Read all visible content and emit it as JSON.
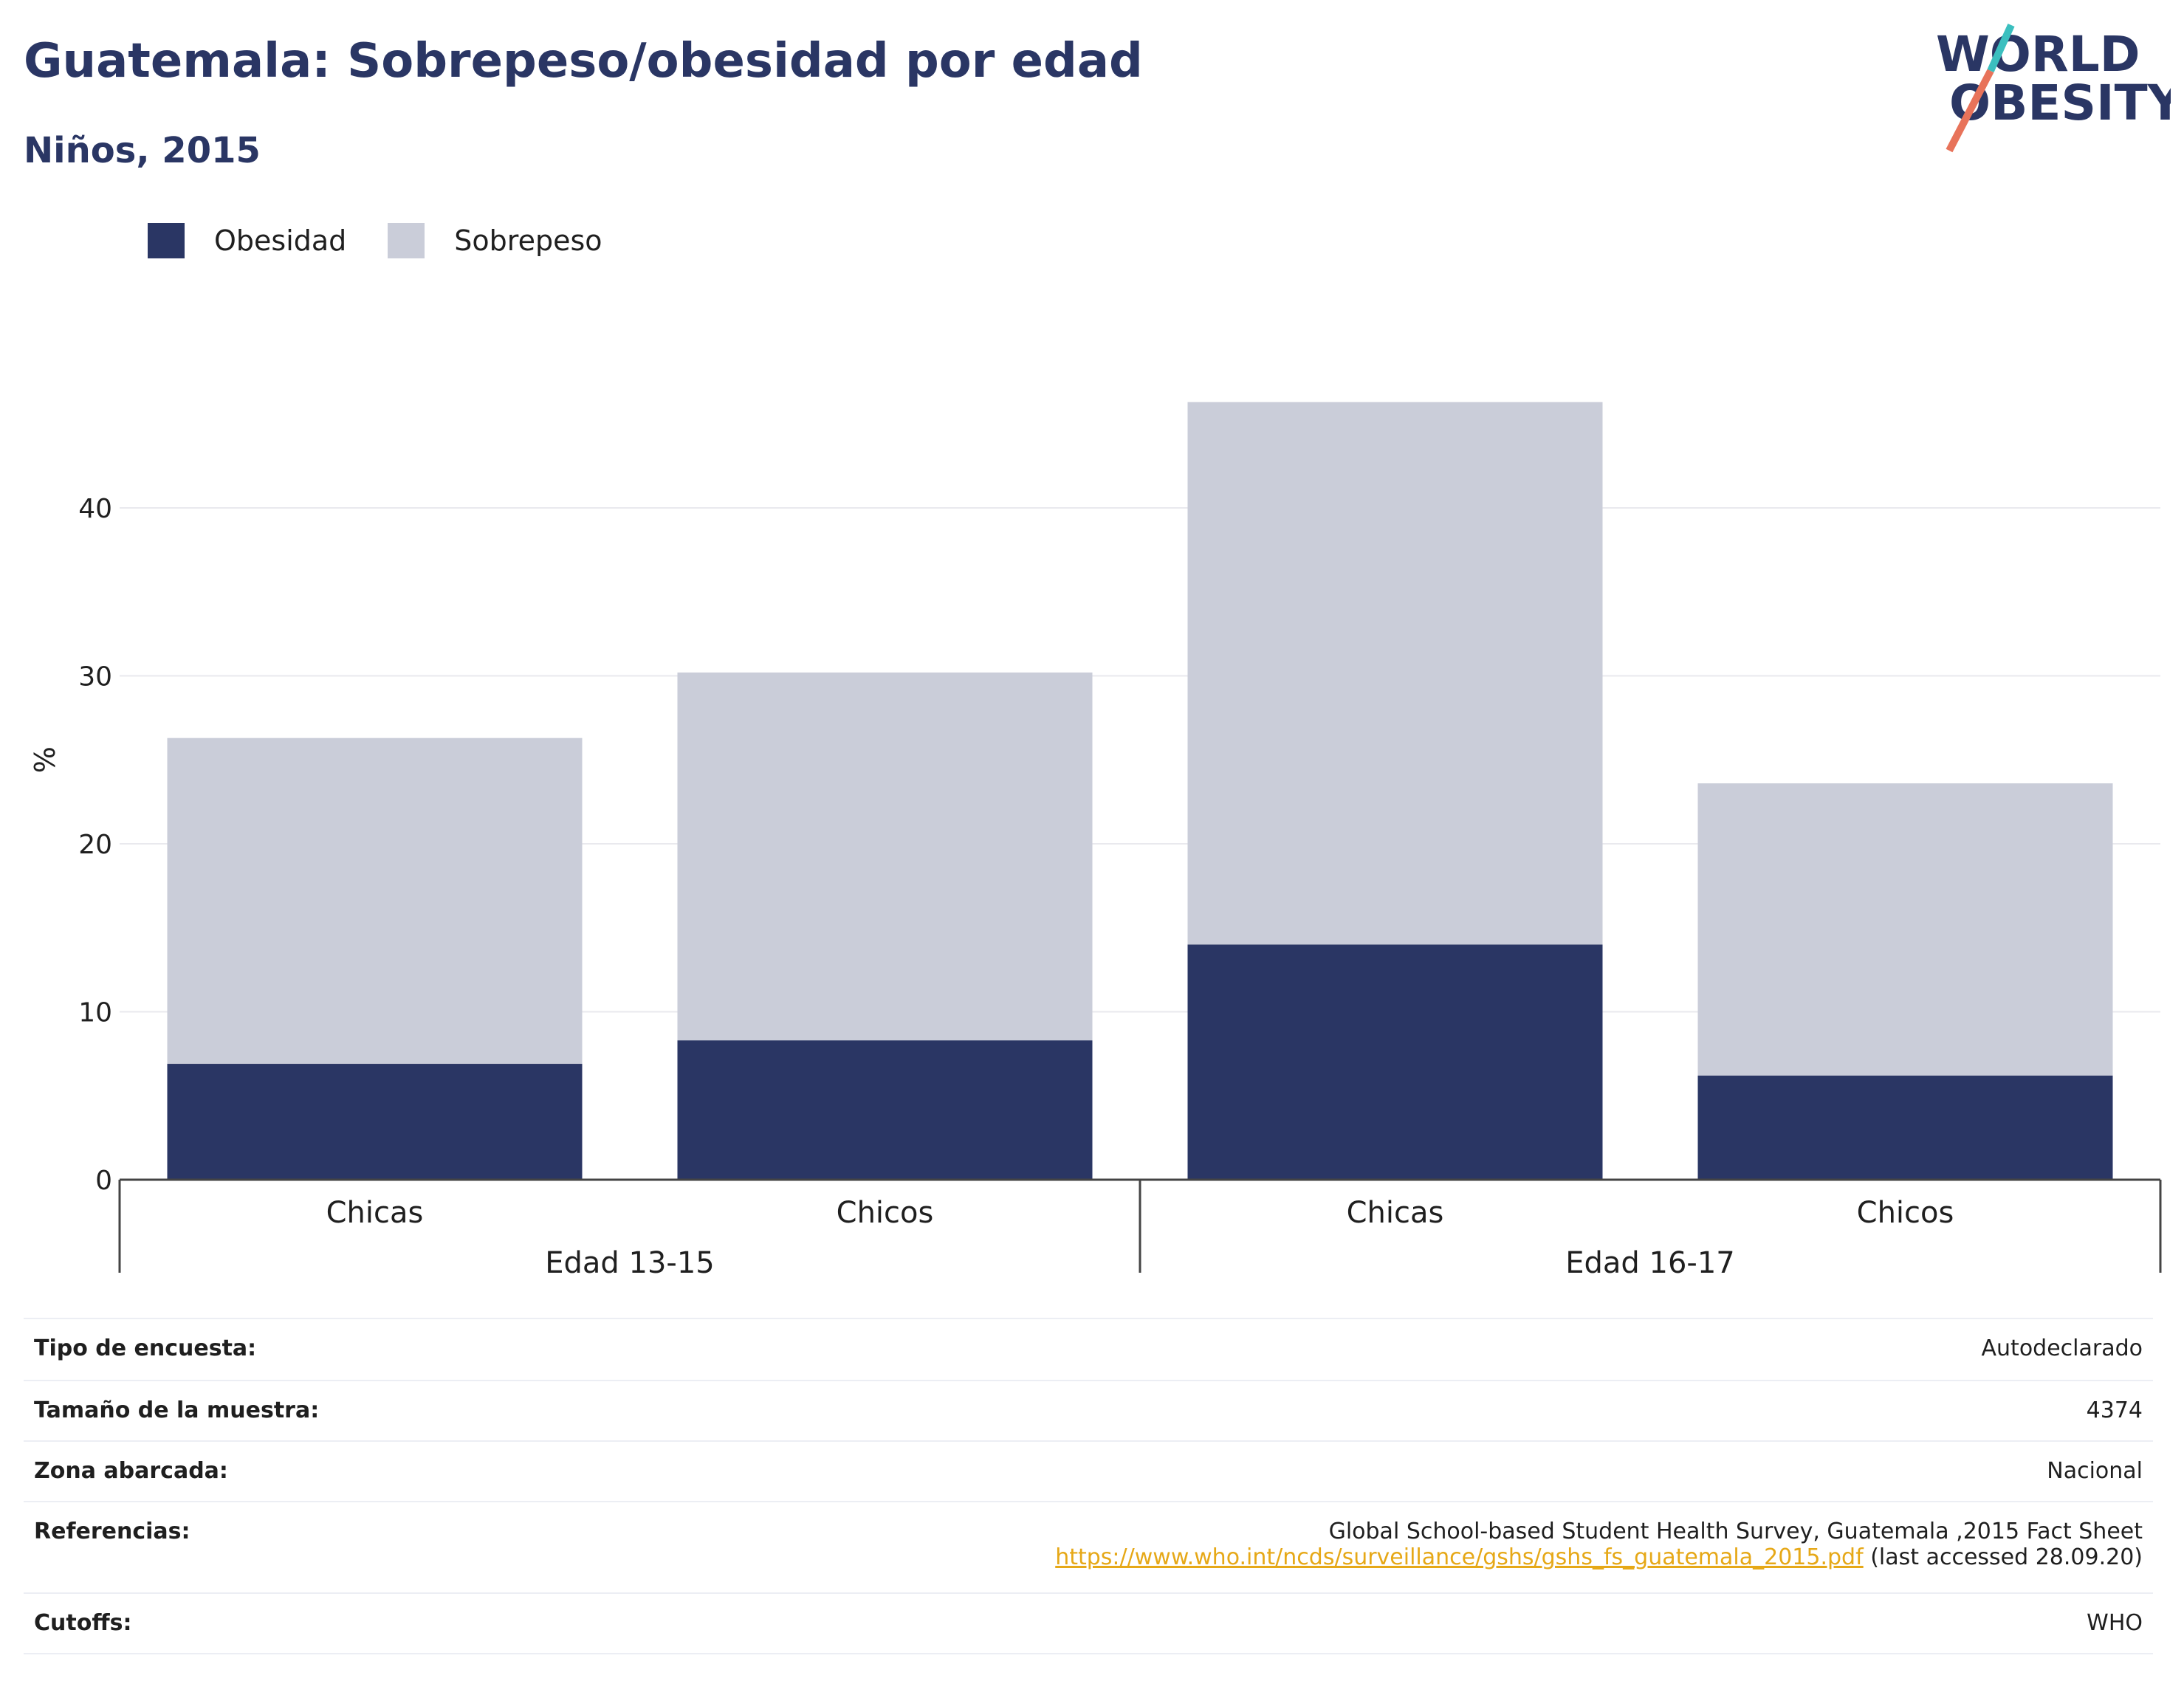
{
  "header": {
    "title": "Guatemala: Sobrepeso/obesidad por edad",
    "subtitle": "Niños, 2015"
  },
  "logo": {
    "line1": "WORLD",
    "line2": "OBESITY",
    "colors": {
      "text": "#2a3664",
      "slash_top": "#3bbfbf",
      "slash_bottom": "#e8735a"
    }
  },
  "legend": {
    "items": [
      {
        "label": "Obesidad",
        "color": "#2a3664"
      },
      {
        "label": "Sobrepeso",
        "color": "#cacdd9"
      }
    ]
  },
  "chart_data": {
    "type": "bar",
    "stacked": true,
    "categories": [
      "Chicas",
      "Chicos",
      "Chicas",
      "Chicos"
    ],
    "groups": [
      {
        "label": "Edad 13-15",
        "categories": [
          0,
          1
        ]
      },
      {
        "label": "Edad 16-17",
        "categories": [
          2,
          3
        ]
      }
    ],
    "series": [
      {
        "name": "Obesidad",
        "color": "#2a3664",
        "values": [
          6.9,
          8.3,
          14.0,
          6.2
        ]
      },
      {
        "name": "Sobrepeso",
        "color": "#cacdd9",
        "values": [
          19.4,
          21.9,
          32.3,
          17.4
        ]
      }
    ],
    "ylabel": "%",
    "ylim": [
      0,
      50
    ],
    "yticks": [
      0,
      10,
      20,
      30,
      40
    ],
    "grid": true,
    "legend_position": "top-left"
  },
  "info": {
    "rows": [
      {
        "label": "Tipo de encuesta:",
        "value": "Autodeclarado"
      },
      {
        "label": "Tamaño de la muestra:",
        "value": "4374"
      },
      {
        "label": "Zona abarcada:",
        "value": "Nacional"
      },
      {
        "label": "Referencias:",
        "value": "Global School-based Student Health Survey, Guatemala ,2015 Fact Sheet",
        "link": "https://www.who.int/ncds/surveillance/gshs/gshs_fs_guatemala_2015.pdf",
        "note": "(last accessed 28.09.20)"
      },
      {
        "label": "Cutoffs:",
        "value": "WHO"
      }
    ],
    "link_color": "#e6a817"
  }
}
